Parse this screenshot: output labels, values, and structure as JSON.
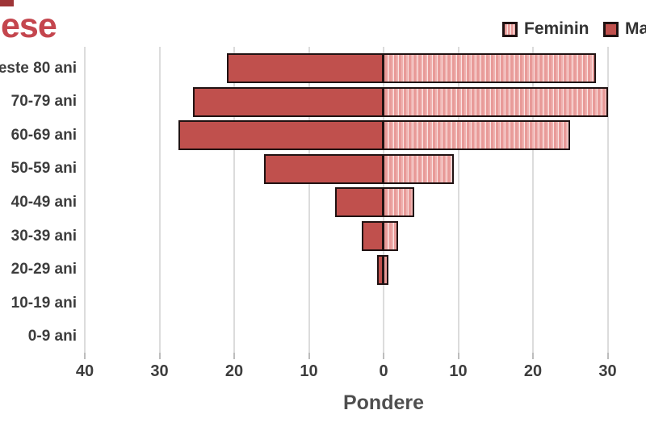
{
  "header": {
    "title_fragment": "ese",
    "title_color": "#c4464e"
  },
  "legend": {
    "items": [
      {
        "label": "Feminin",
        "swatch": "striped-pink"
      },
      {
        "label": "Ma",
        "swatch": "solid-red"
      }
    ]
  },
  "colors": {
    "masculin_fill": "#c0504d",
    "feminin_base": "#eeadab",
    "feminin_stripe_light": "#fbe4e3",
    "bar_border": "#201212",
    "gridline": "#dcdcdc",
    "axis_text": "#3d3d3d",
    "xlabel_text": "#4f4f4f",
    "title_red": "#c4464e",
    "corner_mark": "#9e3537"
  },
  "chart_data": {
    "type": "bar",
    "subtype": "population_pyramid_horizontal",
    "title_fragment": "ese",
    "xlabel": "Pondere",
    "categories": [
      "este 80 ani",
      "70-79 ani",
      "60-69 ani",
      "50-59 ani",
      "40-49 ani",
      "30-39 ani",
      "20-29 ani",
      "10-19 ani",
      "0-9 ani"
    ],
    "series": [
      {
        "name": "Feminin",
        "side": "right",
        "pattern": "vertical-stripes",
        "values": [
          28.4,
          30,
          25,
          9.4,
          4.1,
          1.9,
          0.7,
          0,
          0
        ]
      },
      {
        "name": "Ma",
        "side": "left",
        "pattern": "solid",
        "values": [
          21,
          25.5,
          27.5,
          16,
          6.5,
          2.9,
          0.9,
          0,
          0
        ]
      }
    ],
    "x_axis": {
      "tick_values": [
        -40,
        -30,
        -20,
        -10,
        0,
        10,
        20,
        30
      ],
      "tick_labels": [
        "40",
        "30",
        "20",
        "10",
        "0",
        "10",
        "20",
        "30"
      ]
    },
    "legend_position": "top-right",
    "grid": "vertical-only"
  }
}
